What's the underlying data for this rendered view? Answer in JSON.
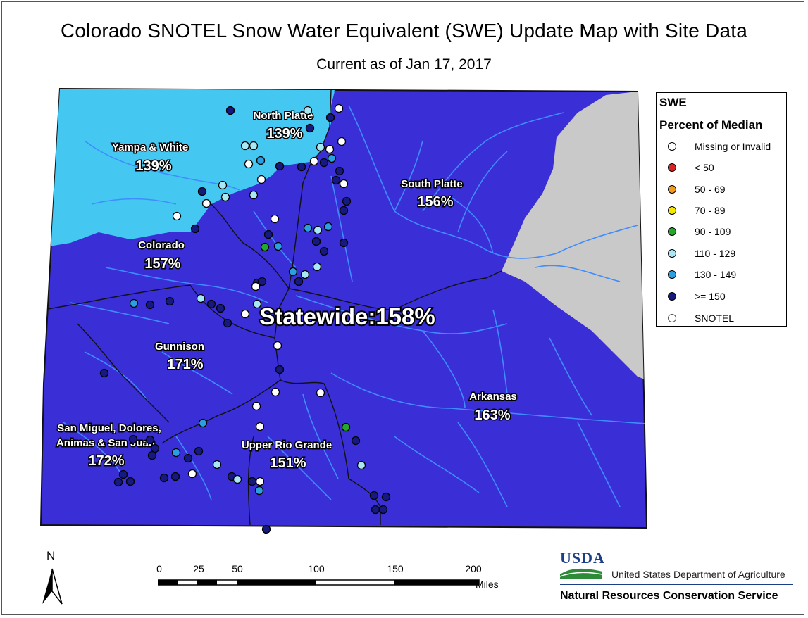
{
  "title": "Colorado SNOTEL Snow Water Equivalent (SWE) Update Map with Site Data",
  "subtitle": "Current as of Jan 17, 2017",
  "colors": {
    "state_fill": "#3a2ed6",
    "ge150": "#161a80",
    "c130_149": "#2b9fe0",
    "c110_129": "#a8e8f4",
    "c90_109": "#22a82a",
    "c70_89": "#f5e600",
    "c50_69": "#f49a1a",
    "lt50": "#e02020",
    "missing": "#ffffff",
    "basin_light": "#44c8f2",
    "nodata": "#c9c9c9",
    "river": "#3f8cff",
    "border": "#111111"
  },
  "basins": [
    {
      "name": "Yampa & White",
      "percent": "139%",
      "class": "c130_149"
    },
    {
      "name": "North Platte",
      "percent": "139%",
      "class": "c130_149"
    },
    {
      "name": "South Platte",
      "percent": "156%",
      "class": "ge150"
    },
    {
      "name": "Colorado",
      "percent": "157%",
      "class": "ge150"
    },
    {
      "name": "Gunnison",
      "percent": "171%",
      "class": "ge150"
    },
    {
      "name": "Arkansas",
      "percent": "163%",
      "class": "ge150"
    },
    {
      "name": "San Miguel, Dolores,",
      "name2": "Animas & San Juan",
      "percent": "172%",
      "class": "ge150"
    },
    {
      "name": "Upper Rio Grande",
      "percent": "151%",
      "class": "ge150"
    }
  ],
  "statewide": "Statewide:158%",
  "legend": {
    "title1": "SWE",
    "title2": "Percent of Median",
    "items": [
      {
        "label": "Missing or Invalid",
        "color": "#ffffff"
      },
      {
        "label": "< 50",
        "color": "#e02020"
      },
      {
        "label": "50 - 69",
        "color": "#f49a1a"
      },
      {
        "label": "70 - 89",
        "color": "#f5e600"
      },
      {
        "label": "90 - 109",
        "color": "#22a82a"
      },
      {
        "label": "110 - 129",
        "color": "#a8e8f4"
      },
      {
        "label": "130 - 149",
        "color": "#2b9fe0"
      },
      {
        "label": ">= 150",
        "color": "#161a80"
      },
      {
        "label": "SNOTEL",
        "color": "#ffffff"
      }
    ]
  },
  "north_label": "N",
  "scale": {
    "ticks": [
      "0",
      "25",
      "50",
      "100",
      "150",
      "200"
    ],
    "units": "Miles"
  },
  "agency": {
    "logo": "USDA",
    "department": "United States Department of Agriculture",
    "service": "Natural Resources Conservation Service"
  }
}
